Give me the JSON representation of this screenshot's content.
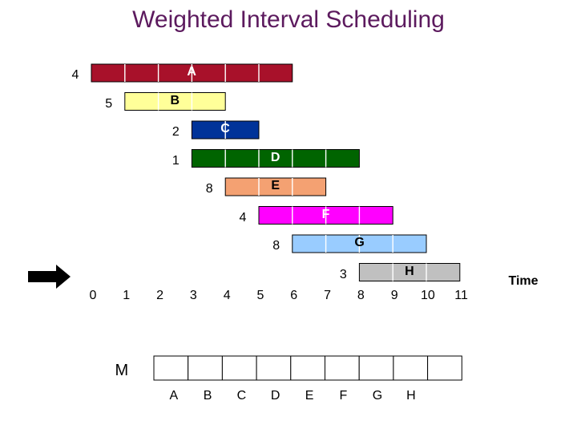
{
  "title": "Weighted Interval Scheduling",
  "intervals": [
    {
      "name": "A",
      "weight": "4",
      "start": 0,
      "end": 6,
      "fill": "#a8112a",
      "label_color": "#ffffff"
    },
    {
      "name": "B",
      "weight": "5",
      "start": 1,
      "end": 4,
      "fill": "#ffff99",
      "label_color": "#000000"
    },
    {
      "name": "C",
      "weight": "2",
      "start": 3,
      "end": 5,
      "fill": "#003399",
      "label_color": "#ffffff"
    },
    {
      "name": "D",
      "weight": "1",
      "start": 3,
      "end": 8,
      "fill": "#006400",
      "label_color": "#ffffff"
    },
    {
      "name": "E",
      "weight": "8",
      "start": 4,
      "end": 7,
      "fill": "#f4a172",
      "label_color": "#000000"
    },
    {
      "name": "F",
      "weight": "4",
      "start": 5,
      "end": 9,
      "fill": "#ff00ff",
      "label_color": "#ffffff"
    },
    {
      "name": "G",
      "weight": "8",
      "start": 6,
      "end": 10,
      "fill": "#99ccff",
      "label_color": "#000000"
    },
    {
      "name": "H",
      "weight": "3",
      "start": 8,
      "end": 11,
      "fill": "#c0c0c0",
      "label_color": "#000000"
    }
  ],
  "axis": {
    "ticks": [
      "0",
      "1",
      "2",
      "3",
      "4",
      "5",
      "6",
      "7",
      "8",
      "9",
      "10",
      "11"
    ],
    "label": "Time"
  },
  "memo": {
    "label": "M",
    "cells": [
      "",
      "",
      "",
      "",
      "",
      "",
      "",
      "",
      ""
    ],
    "column_labels": [
      "A",
      "B",
      "C",
      "D",
      "E",
      "F",
      "G",
      "H"
    ]
  }
}
